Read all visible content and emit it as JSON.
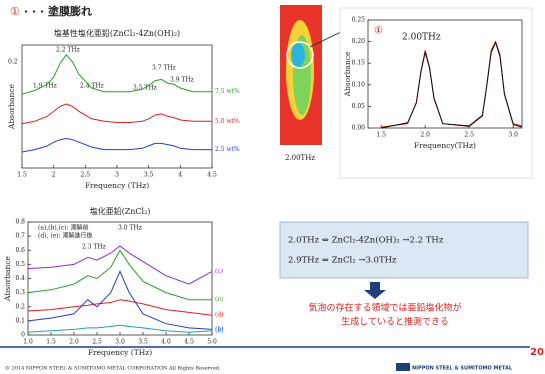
{
  "header": {
    "number": "①",
    "title": "· · · 塗膜膨れ"
  },
  "heatmap_caption": "2.00THz",
  "box": {
    "line1": "2.0THz ⇔ ZnCl₂-4Zn(OH)₂ →2.2 THz",
    "line2": "2.9THz ⇔ ZnCl₂ →3.0THz"
  },
  "conclusion": [
    "気泡の存在する領域では亜鉛塩化物が",
    "生成していると推測できる"
  ],
  "page_number": "20",
  "footer": {
    "copyright": "© 2014 NIPPON STEEL & SUMITOMO METAL CORPORATION All Rights Reserved.",
    "logo": "NIPPON STEEL & SUMITOMO METAL"
  },
  "chart_data": [
    {
      "type": "line",
      "title": "塩基性塩化亜鉛(ZnCl₂-4Zn(OH)₂)",
      "x_label": "Frequency (THz)",
      "y_label": "Absorbance",
      "annotations": [
        "0.2",
        "1.9 THz",
        "2.2 THz",
        "2.4 THz",
        "3.5 THz",
        "3.7 THz",
        "3.9 THz"
      ],
      "x": [
        1.5,
        1.7,
        1.9,
        2.0,
        2.1,
        2.2,
        2.3,
        2.4,
        2.6,
        2.8,
        3.0,
        3.2,
        3.4,
        3.5,
        3.6,
        3.7,
        3.8,
        3.9,
        4.0,
        4.2,
        4.5
      ],
      "xlim": [
        1.5,
        4.5
      ],
      "xticks": [
        1.5,
        2,
        2.5,
        3,
        3.5,
        4,
        4.5
      ],
      "ylim": [
        0,
        1
      ],
      "series": [
        {
          "name": "7.5 wt%",
          "color": "#2a9d2a",
          "values": [
            0.6,
            0.63,
            0.68,
            0.74,
            0.85,
            0.92,
            0.86,
            0.76,
            0.65,
            0.62,
            0.62,
            0.62,
            0.64,
            0.67,
            0.71,
            0.72,
            0.69,
            0.68,
            0.65,
            0.62,
            0.62
          ]
        },
        {
          "name": "5.0 wt%",
          "color": "#e02020",
          "values": [
            0.36,
            0.38,
            0.42,
            0.46,
            0.5,
            0.52,
            0.5,
            0.46,
            0.4,
            0.38,
            0.37,
            0.37,
            0.38,
            0.4,
            0.43,
            0.44,
            0.42,
            0.41,
            0.39,
            0.38,
            0.38
          ]
        },
        {
          "name": "2.5 wt%",
          "color": "#2040d0",
          "values": [
            0.13,
            0.15,
            0.18,
            0.21,
            0.23,
            0.24,
            0.23,
            0.21,
            0.17,
            0.15,
            0.15,
            0.15,
            0.16,
            0.18,
            0.2,
            0.2,
            0.19,
            0.18,
            0.16,
            0.15,
            0.15
          ]
        }
      ]
    },
    {
      "type": "line",
      "title": "塩化亜鉛(ZnCl₂)",
      "x_label": "Frequency (THz)",
      "y_label": "Absorbance",
      "annotations": [
        "(a),(b),(c): 潮解前",
        "(d), (e): 潮解進行後",
        "2.3 THz",
        "3.0 THz"
      ],
      "x": [
        1.0,
        1.5,
        2.0,
        2.3,
        2.5,
        2.8,
        3.0,
        3.2,
        3.5,
        4.0,
        4.5,
        5.0
      ],
      "xlim": [
        1.0,
        5.0
      ],
      "xticks": [
        {
          "value": 1.0,
          "label": "1.0"
        },
        1.5,
        {
          "value": 2.0,
          "label": "2.0"
        },
        2.5,
        {
          "value": 3.0,
          "label": "3.0"
        },
        3.5,
        {
          "value": 4.0,
          "label": "4.0"
        },
        4.5,
        {
          "value": 5.0,
          "label": "5.0"
        }
      ],
      "ylim": [
        0,
        0.8
      ],
      "yticks": [
        0,
        0.1,
        0.2,
        0.3,
        0.4,
        0.5,
        0.6,
        0.7,
        0.8
      ],
      "series": [
        {
          "name": "(c)",
          "color": "#8a2be2",
          "values": [
            0.47,
            0.48,
            0.5,
            0.55,
            0.53,
            0.58,
            0.63,
            0.58,
            0.52,
            0.42,
            0.36,
            0.45
          ]
        },
        {
          "name": "(e)",
          "color": "#2a9d2a",
          "values": [
            0.3,
            0.32,
            0.36,
            0.42,
            0.4,
            0.48,
            0.6,
            0.5,
            0.38,
            0.3,
            0.25,
            0.25
          ]
        },
        {
          "name": "(d)",
          "color": "#e02020",
          "values": [
            0.17,
            0.18,
            0.2,
            0.21,
            0.22,
            0.23,
            0.25,
            0.24,
            0.22,
            0.18,
            0.16,
            0.14
          ]
        },
        {
          "name": "(b)",
          "color": "#2040d0",
          "values": [
            0.1,
            0.12,
            0.15,
            0.25,
            0.2,
            0.3,
            0.45,
            0.3,
            0.15,
            0.08,
            0.05,
            0.04
          ]
        },
        {
          "name": "(a)",
          "color": "#20a0c0",
          "values": [
            0.02,
            0.03,
            0.04,
            0.05,
            0.05,
            0.06,
            0.07,
            0.06,
            0.05,
            0.03,
            0.02,
            0.03
          ]
        }
      ]
    },
    {
      "type": "line",
      "x_label": "Frequency(THz)",
      "y_label": "Absorbance",
      "annotations": [
        "①",
        "2.00THz"
      ],
      "x": [
        1.5,
        1.8,
        1.9,
        1.95,
        2.0,
        2.05,
        2.1,
        2.2,
        2.5,
        2.65,
        2.7,
        2.75,
        2.8,
        2.85,
        2.9,
        3.0,
        3.1
      ],
      "xlim": [
        1.35,
        3.1
      ],
      "xticks": [
        1.5,
        {
          "value": 2.0,
          "label": "2.0"
        },
        2.5,
        {
          "value": 3.0,
          "label": "3.0"
        }
      ],
      "ylim": [
        0,
        0.25
      ],
      "yticks": [
        {
          "value": 0,
          "label": "0.00"
        },
        {
          "value": 0.05,
          "label": "0.05"
        },
        {
          "value": 0.1,
          "label": "0.10"
        },
        {
          "value": 0.15,
          "label": "0.15"
        },
        {
          "value": 0.2,
          "label": "0.20"
        },
        {
          "value": 0.25,
          "label": "0.25"
        }
      ],
      "series": [
        {
          "color": "#e02020",
          "values": [
            0.002,
            0.01,
            0.06,
            0.13,
            0.18,
            0.14,
            0.07,
            0.01,
            0.005,
            0.03,
            0.1,
            0.18,
            0.2,
            0.17,
            0.08,
            0.01,
            0.005
          ]
        },
        {
          "color": "#111111",
          "values": [
            0.0,
            0.012,
            0.058,
            0.128,
            0.175,
            0.138,
            0.068,
            0.01,
            0.004,
            0.028,
            0.098,
            0.175,
            0.198,
            0.165,
            0.078,
            0.008,
            0.002
          ]
        }
      ]
    }
  ]
}
